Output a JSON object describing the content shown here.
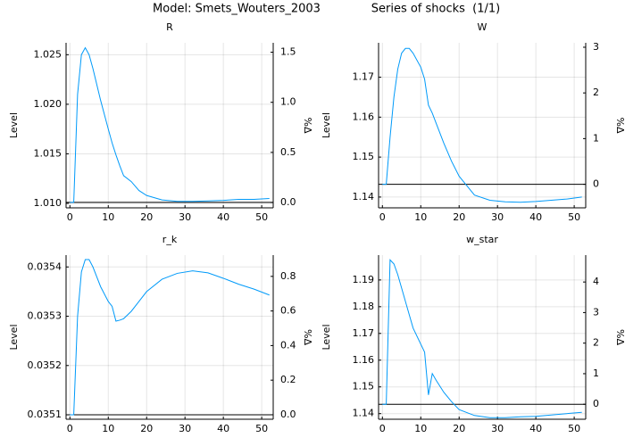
{
  "header": {
    "model": "Model: Smets_Wouters_2003",
    "shocks": "Series of shocks  (1/1)"
  },
  "chart_data": [
    {
      "type": "line",
      "title": "R",
      "ylabel": "Level",
      "y2label": "%Δ",
      "x": [
        0,
        1,
        2,
        3,
        4,
        5,
        6,
        7,
        8,
        10,
        11,
        12,
        13,
        14,
        16,
        18,
        20,
        24,
        28,
        32,
        36,
        40,
        44,
        48,
        52
      ],
      "series": [
        {
          "color": "#009af9",
          "values": [
            1.0101,
            1.0101,
            1.021,
            1.025,
            1.0257,
            1.025,
            1.0236,
            1.022,
            1.0204,
            1.0175,
            1.0161,
            1.0149,
            1.0138,
            1.0128,
            1.0122,
            1.0113,
            1.0108,
            1.01035,
            1.0102,
            1.0102,
            1.01025,
            1.0103,
            1.0104,
            1.0104,
            1.0105
          ]
        }
      ],
      "hline": 1.0101,
      "hline_color": "#000000",
      "xlim": [
        -1,
        53
      ],
      "xticks": [
        0,
        10,
        20,
        30,
        40,
        50
      ],
      "ylim": [
        1.00955,
        1.0262
      ],
      "yticks": [
        {
          "value": 1.01,
          "label": "1.010"
        },
        {
          "value": 1.015,
          "label": "1.015"
        },
        {
          "value": 1.02,
          "label": "1.020"
        },
        {
          "value": 1.025,
          "label": "1.025"
        }
      ],
      "y2lim": [
        -0.054,
        1.594
      ],
      "y2ticks": [
        {
          "value": 0,
          "label": "0.0"
        },
        0.5,
        {
          "value": 1,
          "label": "1.0"
        },
        1.5
      ],
      "grid": true
    },
    {
      "type": "line",
      "title": "W",
      "ylabel": "Level",
      "y2label": "%Δ",
      "x": [
        0,
        1,
        2,
        3,
        4,
        5,
        6,
        7,
        8,
        10,
        11,
        12,
        13,
        14,
        16,
        18,
        20,
        24,
        28,
        32,
        36,
        40,
        44,
        48,
        52
      ],
      "series": [
        {
          "color": "#009af9",
          "values": [
            1.1432,
            1.1432,
            1.155,
            1.165,
            1.172,
            1.176,
            1.1772,
            1.1772,
            1.176,
            1.1725,
            1.1695,
            1.163,
            1.161,
            1.1585,
            1.1535,
            1.149,
            1.1452,
            1.1405,
            1.1392,
            1.1388,
            1.1387,
            1.1389,
            1.1392,
            1.1395,
            1.14
          ]
        }
      ],
      "hline": 1.1432,
      "hline_color": "#000000",
      "xlim": [
        -1,
        53
      ],
      "xticks": [
        0,
        10,
        20,
        30,
        40,
        50
      ],
      "ylim": [
        1.1373,
        1.1786
      ],
      "yticks": [
        1.14,
        1.15,
        1.16,
        1.17
      ],
      "y2lim": [
        -0.516,
        3.097
      ],
      "y2ticks": [
        0,
        1,
        2,
        3
      ],
      "grid": true
    },
    {
      "type": "line",
      "title": "r_k",
      "ylabel": "Level",
      "y2label": "%Δ",
      "x": [
        0,
        1,
        2,
        3,
        4,
        5,
        6,
        7,
        8,
        10,
        11,
        12,
        13,
        14,
        16,
        18,
        20,
        24,
        28,
        32,
        36,
        40,
        44,
        48,
        52
      ],
      "series": [
        {
          "color": "#009af9",
          "values": [
            0.0351,
            0.0351,
            0.0353,
            0.03539,
            0.035415,
            0.035415,
            0.0354,
            0.03538,
            0.03536,
            0.03533,
            0.03532,
            0.03529,
            0.035292,
            0.035295,
            0.03531,
            0.03533,
            0.03535,
            0.035375,
            0.035387,
            0.035392,
            0.035388,
            0.035377,
            0.035365,
            0.035355,
            0.035343
          ]
        }
      ],
      "hline": 0.0351,
      "hline_color": "#000000",
      "xlim": [
        -1,
        53
      ],
      "xticks": [
        0,
        10,
        20,
        30,
        40,
        50
      ],
      "ylim": [
        0.035091,
        0.035424
      ],
      "yticks": [
        0.0351,
        0.0352,
        0.0353,
        0.0354
      ],
      "y2lim": [
        -0.026,
        0.923
      ],
      "y2ticks": [
        {
          "value": 0,
          "label": "0.0"
        },
        0.2,
        0.4,
        0.6,
        0.8
      ],
      "grid": true
    },
    {
      "type": "line",
      "title": "w_star",
      "ylabel": "Level",
      "y2label": "%Δ",
      "x": [
        0,
        1,
        2,
        3,
        4,
        5,
        6,
        7,
        8,
        10,
        11,
        12,
        13,
        14,
        16,
        18,
        20,
        24,
        28,
        32,
        36,
        40,
        44,
        48,
        52
      ],
      "series": [
        {
          "color": "#009af9",
          "values": [
            1.1435,
            1.1435,
            1.1975,
            1.196,
            1.192,
            1.187,
            1.182,
            1.177,
            1.172,
            1.166,
            1.163,
            1.147,
            1.155,
            1.1525,
            1.148,
            1.1445,
            1.1415,
            1.1393,
            1.1385,
            1.1385,
            1.1388,
            1.139,
            1.1395,
            1.14,
            1.1405
          ]
        }
      ],
      "hline": 1.1435,
      "hline_color": "#000000",
      "xlim": [
        -1,
        53
      ],
      "xticks": [
        0,
        10,
        20,
        30,
        40,
        50
      ],
      "ylim": [
        1.1379,
        1.1993
      ],
      "yticks": [
        1.14,
        1.15,
        1.16,
        1.17,
        1.18,
        1.19
      ],
      "y2lim": [
        -0.49,
        4.88
      ],
      "y2ticks": [
        0,
        1,
        2,
        3,
        4
      ],
      "grid": true
    }
  ]
}
